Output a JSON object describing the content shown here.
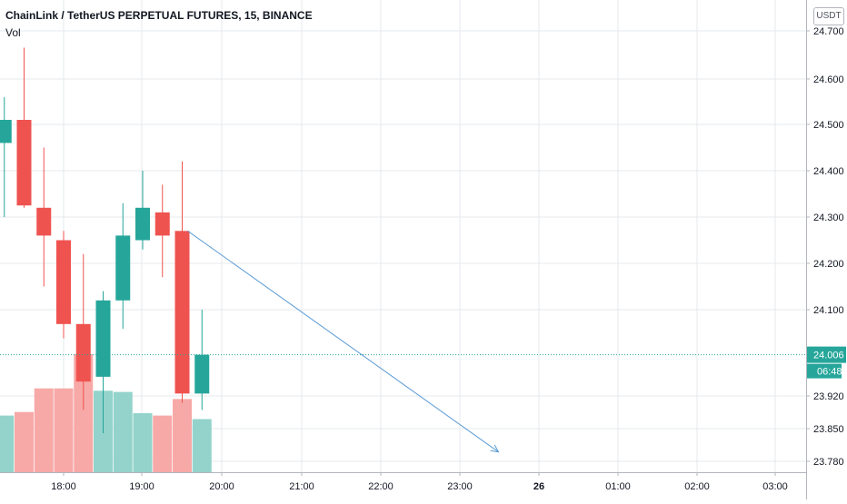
{
  "header": {
    "title": "ChainLink / TetherUS PERPETUAL FUTURES, 15, BINANCE",
    "vol_label": "Vol"
  },
  "price_axis": {
    "currency": "USDT",
    "ticks": [
      "24.700",
      "24.600",
      "24.500",
      "24.400",
      "24.300",
      "24.200",
      "24.100",
      "23.920",
      "23.850",
      "23.780"
    ],
    "current_price": "24.006",
    "countdown": "06:48"
  },
  "time_axis": {
    "labels": [
      {
        "text": "18:00",
        "bold": false
      },
      {
        "text": "19:00",
        "bold": false
      },
      {
        "text": "20:00",
        "bold": false
      },
      {
        "text": "21:00",
        "bold": false
      },
      {
        "text": "22:00",
        "bold": false
      },
      {
        "text": "23:00",
        "bold": false
      },
      {
        "text": "26",
        "bold": true
      },
      {
        "text": "01:00",
        "bold": false
      },
      {
        "text": "02:00",
        "bold": false
      },
      {
        "text": "03:00",
        "bold": false
      }
    ]
  },
  "colors": {
    "up": "#26a69a",
    "down": "#ef5350",
    "volume_up": "#93d3cb",
    "volume_down": "#f7a9a7",
    "grid": "#e6e8ec",
    "arrow": "#5b9bd5",
    "price_line": "#26a69a"
  },
  "chart_data": {
    "type": "candlestick",
    "title": "ChainLink / TetherUS PERPETUAL FUTURES, 15, BINANCE",
    "interval": "15 minutes",
    "exchange": "BINANCE",
    "y_axis_scale": "non-linear (compressed below 24.100)",
    "candles": [
      {
        "time": "17:15",
        "open": 24.46,
        "high": 24.56,
        "low": 24.3,
        "close": 24.51,
        "direction": "up"
      },
      {
        "time": "17:30",
        "open": 24.51,
        "high": 24.665,
        "low": 24.32,
        "close": 24.325,
        "direction": "down"
      },
      {
        "time": "17:45",
        "open": 24.32,
        "high": 24.45,
        "low": 24.15,
        "close": 24.26,
        "direction": "down"
      },
      {
        "time": "18:00",
        "open": 24.25,
        "high": 24.27,
        "low": 24.04,
        "close": 24.07,
        "direction": "down"
      },
      {
        "time": "18:15",
        "open": 24.07,
        "high": 24.22,
        "low": 23.89,
        "close": 23.95,
        "direction": "down"
      },
      {
        "time": "18:30",
        "open": 23.96,
        "high": 24.14,
        "low": 23.84,
        "close": 24.12,
        "direction": "up"
      },
      {
        "time": "18:45",
        "open": 24.12,
        "high": 24.33,
        "low": 24.06,
        "close": 24.26,
        "direction": "up"
      },
      {
        "time": "19:00",
        "open": 24.25,
        "high": 24.4,
        "low": 24.23,
        "close": 24.32,
        "direction": "up"
      },
      {
        "time": "19:15",
        "open": 24.31,
        "high": 24.37,
        "low": 24.17,
        "close": 24.26,
        "direction": "down"
      },
      {
        "time": "19:30",
        "open": 24.27,
        "high": 24.42,
        "low": 23.905,
        "close": 23.925,
        "direction": "down"
      },
      {
        "time": "19:45",
        "open": 23.925,
        "high": 24.1,
        "low": 23.89,
        "close": 24.006,
        "direction": "up"
      }
    ],
    "volume_bars": [
      {
        "time": "17:15",
        "relative_volume": 0.48,
        "direction": "up"
      },
      {
        "time": "17:30",
        "relative_volume": 0.51,
        "direction": "down"
      },
      {
        "time": "17:45",
        "relative_volume": 0.71,
        "direction": "down"
      },
      {
        "time": "18:00",
        "relative_volume": 0.71,
        "direction": "down"
      },
      {
        "time": "18:15",
        "relative_volume": 1.0,
        "direction": "down"
      },
      {
        "time": "18:30",
        "relative_volume": 0.69,
        "direction": "up"
      },
      {
        "time": "18:45",
        "relative_volume": 0.68,
        "direction": "up"
      },
      {
        "time": "19:00",
        "relative_volume": 0.5,
        "direction": "up"
      },
      {
        "time": "19:15",
        "relative_volume": 0.48,
        "direction": "down"
      },
      {
        "time": "19:30",
        "relative_volume": 0.62,
        "direction": "down"
      },
      {
        "time": "19:45",
        "relative_volume": 0.45,
        "direction": "up"
      }
    ],
    "annotation": {
      "type": "arrow",
      "from": {
        "time": "19:30",
        "price": 24.27
      },
      "to": {
        "time": "23:30",
        "price": 23.8
      }
    },
    "current_price": 24.006,
    "x_range": [
      "17:00",
      "03:30"
    ],
    "y_range": [
      23.76,
      24.72
    ],
    "grid": true
  }
}
